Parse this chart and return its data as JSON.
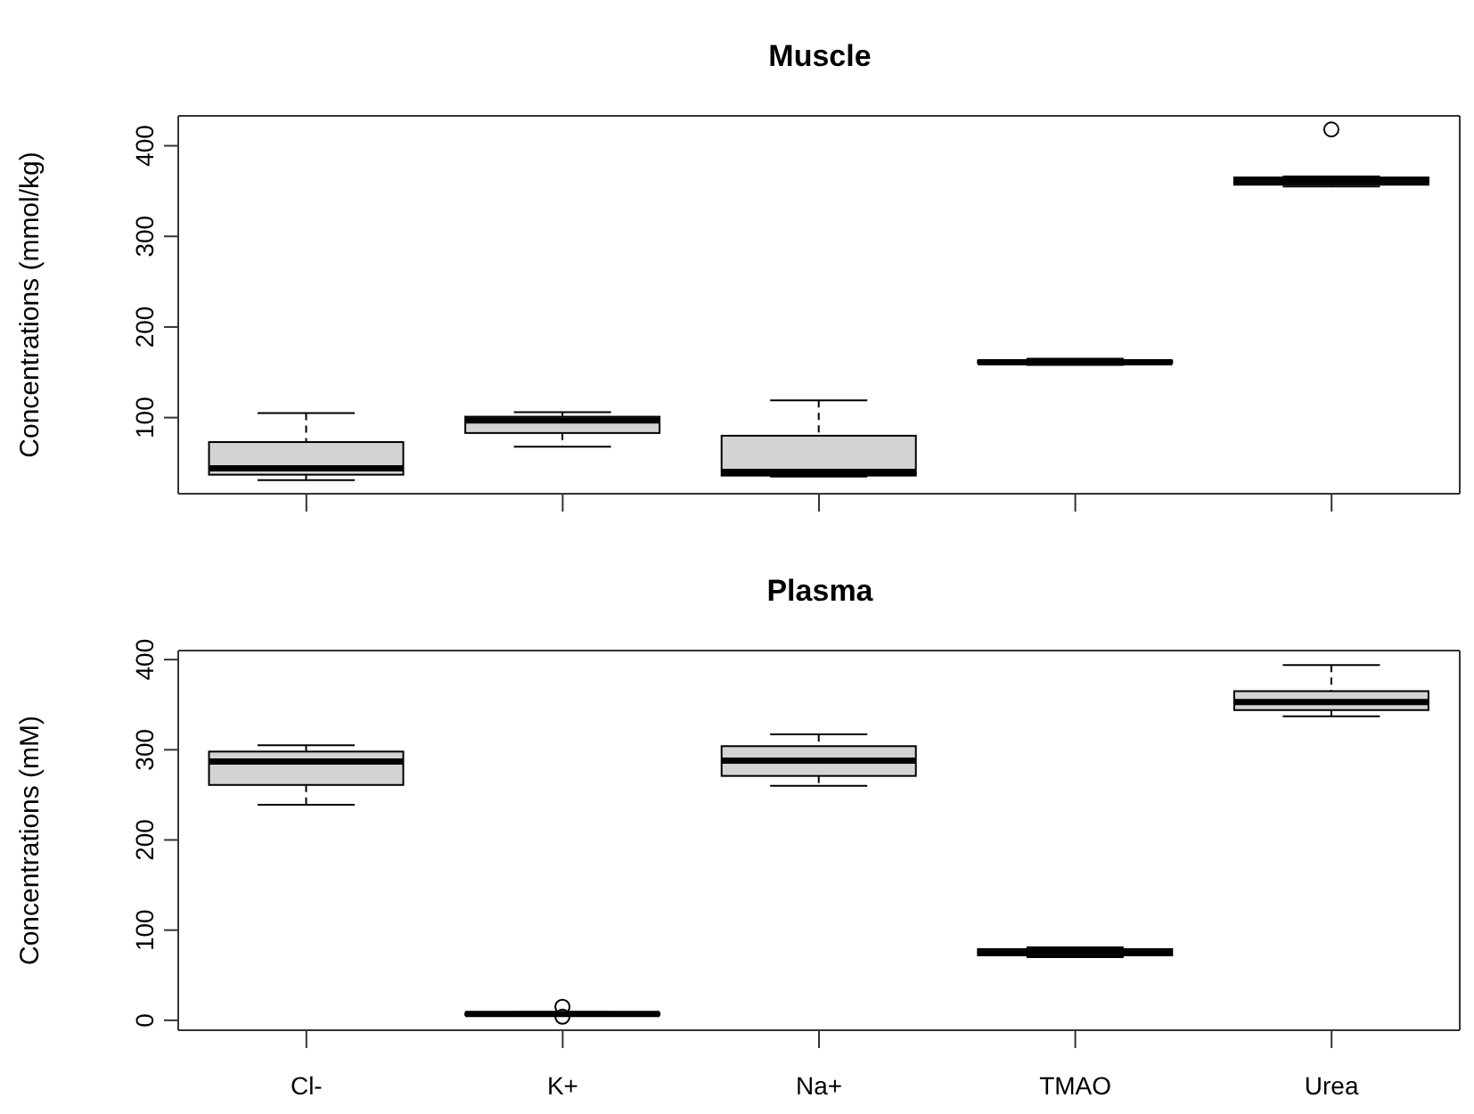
{
  "chart_data": [
    {
      "type": "box",
      "title": "Muscle",
      "ylabel": "Concentrations (mmol/kg)",
      "categories": [
        null,
        null,
        null,
        null,
        null
      ],
      "color": "#d3d3d3",
      "ylim": [
        16,
        433
      ],
      "yticks": [
        100,
        200,
        300,
        400
      ],
      "tick_labels": "y",
      "grid": false,
      "legend": false,
      "boxes": [
        {
          "low": 31,
          "q1": 37,
          "median": 44,
          "q3": 73,
          "high": 105
        },
        {
          "low": 68,
          "q1": 83,
          "median": 97,
          "q3": 101,
          "high": 106
        },
        {
          "low": 35,
          "q1": 36,
          "median": 40,
          "q3": 80,
          "high": 119
        },
        {
          "low": 158,
          "q1": 160,
          "median": 161,
          "q3": 163,
          "high": 165
        },
        {
          "low": 355,
          "q1": 357,
          "median": 361,
          "q3": 365,
          "high": 366,
          "outliers": [
            418
          ]
        }
      ]
    },
    {
      "type": "box",
      "title": "Plasma",
      "ylabel": "Concentrations (mM)",
      "categories": [
        "Cl-",
        "K+",
        "Na+",
        "TMAO",
        "Urea"
      ],
      "color": "#d3d3d3",
      "ylim": [
        -11,
        410
      ],
      "yticks": [
        0,
        100,
        200,
        300,
        400
      ],
      "grid": false,
      "legend": false,
      "boxes": [
        {
          "low": 239,
          "q1": 261,
          "median": 287,
          "q3": 298,
          "high": 305
        },
        {
          "low": 5,
          "q1": 6,
          "median": 7,
          "q3": 8,
          "high": 9,
          "outliers": [
            15,
            4
          ]
        },
        {
          "low": 260,
          "q1": 271,
          "median": 288,
          "q3": 304,
          "high": 317
        },
        {
          "low": 70,
          "q1": 72,
          "median": 75,
          "q3": 79,
          "high": 81
        },
        {
          "low": 337,
          "q1": 344,
          "median": 353,
          "q3": 365,
          "high": 394
        }
      ]
    }
  ]
}
